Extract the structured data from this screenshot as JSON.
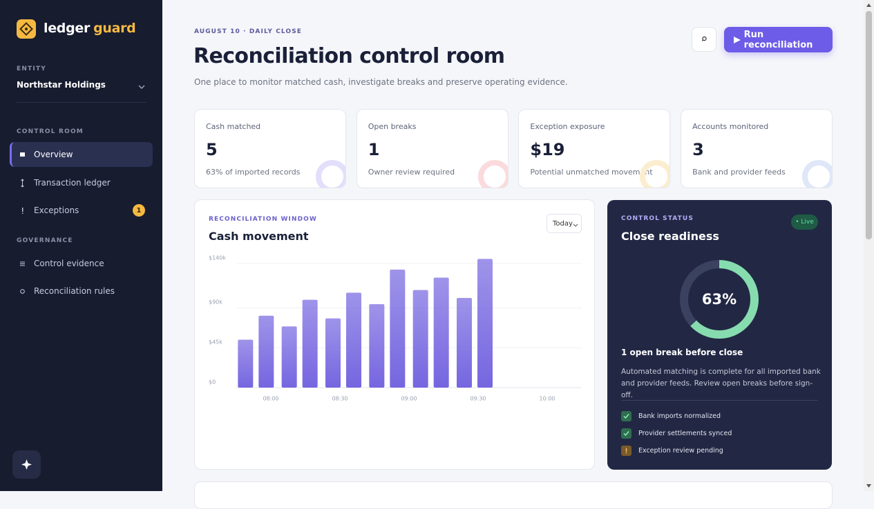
{
  "sidebar": {
    "brand": [
      "ledger",
      "guard"
    ],
    "entity_label": "ENTITY",
    "entity": "Northstar Holdings",
    "sections": [
      {
        "title": "CONTROL ROOM",
        "items": [
          {
            "label": "Overview"
          },
          {
            "label": "Transaction ledger"
          },
          {
            "label": "Exceptions",
            "badge": "1"
          }
        ]
      },
      {
        "title": "GOVERNANCE",
        "items": [
          {
            "label": "Control evidence"
          },
          {
            "label": "Reconciliation rules"
          }
        ]
      }
    ]
  },
  "header": {
    "kicker": "AUGUST 10 · DAILY CLOSE",
    "title": "Reconciliation control room",
    "subtitle": "One place to monitor matched cash, investigate breaks and preserve operating evidence.",
    "action": "Run reconciliation"
  },
  "kpis": [
    {
      "label": "Cash matched",
      "value": "5",
      "note": "63% of imported records"
    },
    {
      "label": "Open breaks",
      "value": "1",
      "note": "Owner review required"
    },
    {
      "label": "Exception exposure",
      "value": "$19",
      "note": "Potential unmatched movement"
    },
    {
      "label": "Accounts monitored",
      "value": "3",
      "note": "Bank and provider feeds"
    }
  ],
  "chart_data": {
    "type": "bar",
    "kicker": "RECONCILIATION WINDOW",
    "title": "Cash movement",
    "period": "Today",
    "x": [
      469,
      478,
      488,
      497,
      507,
      516,
      526,
      535,
      545,
      554,
      564,
      573
    ],
    "values": [
      54000,
      81000,
      69000,
      99000,
      78000,
      107000,
      94000,
      133000,
      110000,
      124000,
      101000,
      145000
    ],
    "color": "#7566e0",
    "xlim": [
      465,
      615
    ],
    "xticks": [
      {
        "value": 480,
        "label": "08:00"
      },
      {
        "value": 510,
        "label": "08:30"
      },
      {
        "value": 540,
        "label": "09:00"
      },
      {
        "value": 570,
        "label": "09:30"
      },
      {
        "value": 600,
        "label": "10:00"
      }
    ],
    "ylim": [
      0,
      150000
    ],
    "yticks": [
      {
        "value": 0,
        "label": "$0"
      },
      {
        "value": 45000,
        "label": "$45k"
      },
      {
        "value": 90000,
        "label": "$90k"
      },
      {
        "value": 140000,
        "label": "$140k"
      }
    ],
    "grid": true
  },
  "status": {
    "kicker": "CONTROL STATUS",
    "title": "Close readiness",
    "badge": "• Live",
    "readiness": {
      "percent": 63,
      "percent_label": "63%"
    },
    "headline": "1 open break before close",
    "description": "Automated matching is complete for all imported bank and provider feeds. Review open breaks before sign-off.",
    "checklist": [
      {
        "label": "Bank imports normalized",
        "state": "done"
      },
      {
        "label": "Provider settlements synced",
        "state": "done"
      },
      {
        "label": "Exception review pending",
        "state": "pending"
      }
    ]
  }
}
